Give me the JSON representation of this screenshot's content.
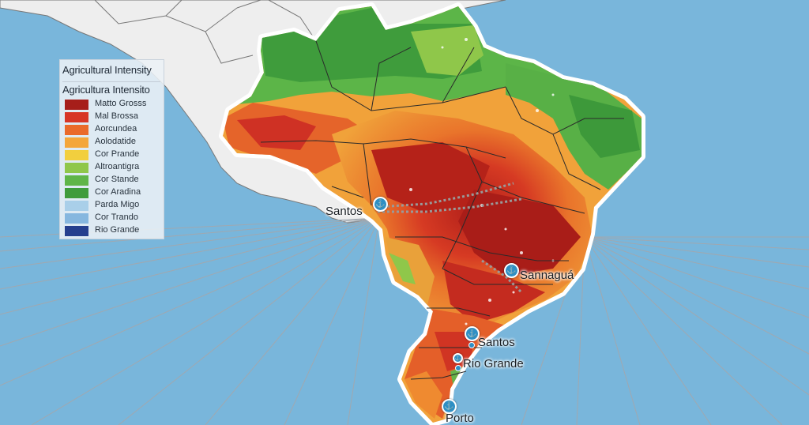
{
  "legend": {
    "title": "Agricultural Intensity",
    "subtitle": "Agricultura Intensito",
    "items": [
      {
        "label": "Matto Grosss",
        "color": "#a61e1a"
      },
      {
        "label": "Mal Brossa",
        "color": "#d73526"
      },
      {
        "label": "Aorcundea",
        "color": "#ea6a2a"
      },
      {
        "label": "Aolodatide",
        "color": "#f4a63a"
      },
      {
        "label": "Cor Prande",
        "color": "#f2cf3e"
      },
      {
        "label": "Altroantigra",
        "color": "#8fc74a"
      },
      {
        "label": "Cor Stande",
        "color": "#5fb548"
      },
      {
        "label": "Cor Aradina",
        "color": "#3f9c3c"
      },
      {
        "label": "Parda Migo",
        "color": "#a9cfe9"
      },
      {
        "label": "Cor Trando",
        "color": "#86b7df"
      },
      {
        "label": "Rio Grande",
        "color": "#253f8e"
      }
    ]
  },
  "ports": {
    "santos_west": {
      "label": "Santos",
      "icon": "anchor-icon"
    },
    "sannagua": {
      "label": "Sannaguá",
      "icon": "anchor-icon"
    },
    "santos_south": {
      "label": "Santos",
      "icon": "anchor-icon"
    },
    "rio_grande": {
      "label": "Rio Grande",
      "icon": "anchor-icon"
    },
    "porto": {
      "label": "Porto",
      "icon": "anchor-icon"
    }
  },
  "colors": {
    "ocean": "#79b6db",
    "neighbor_land": "#eeeeee",
    "border_lines": "#333333",
    "route_lines": "#a8a8a8"
  }
}
